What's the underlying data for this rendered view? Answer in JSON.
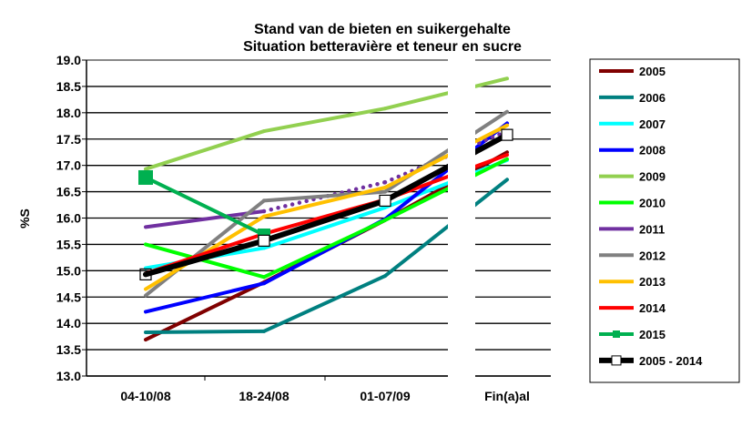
{
  "chart_data": {
    "type": "line",
    "title": "Stand van de bieten en suikergehalte",
    "subtitle": "Situation betteravière et teneur en sucre",
    "ylabel": "%S",
    "xlabel": "",
    "ylim": [
      13.0,
      19.0
    ],
    "yticks": [
      "13.0",
      "13.5",
      "14.0",
      "14.5",
      "15.0",
      "15.5",
      "16.0",
      "16.5",
      "17.0",
      "17.5",
      "18.0",
      "18.5",
      "19.0"
    ],
    "categories": [
      "04-10/08",
      "18-24/08",
      "01-07/09",
      "Fin(a)al"
    ],
    "axis_break": "between 01-07/09 and Fin(a)al",
    "grid": true,
    "legend": "right",
    "series": [
      {
        "name": "2005",
        "color": "#800000",
        "values": [
          13.69,
          14.78,
          15.96,
          17.25
        ]
      },
      {
        "name": "2006",
        "color": "#008080",
        "values": [
          13.83,
          13.85,
          14.9,
          16.73
        ]
      },
      {
        "name": "2007",
        "color": "#00FFFF",
        "values": [
          15.05,
          15.43,
          16.2,
          17.1
        ]
      },
      {
        "name": "2008",
        "color": "#0000FF",
        "values": [
          14.22,
          14.76,
          15.98,
          17.8
        ]
      },
      {
        "name": "2009",
        "color": "#92D050",
        "values": [
          16.93,
          17.65,
          18.08,
          18.65
        ]
      },
      {
        "name": "2010",
        "color": "#00FF00",
        "values": [
          15.5,
          14.88,
          15.96,
          17.12
        ]
      },
      {
        "name": "2011",
        "color": "#7030A0",
        "values": [
          15.83,
          16.13,
          16.68,
          17.65
        ],
        "dotted_after": 1
      },
      {
        "name": "2012",
        "color": "#808080",
        "values": [
          14.53,
          16.33,
          16.5,
          18.02
        ]
      },
      {
        "name": "2013",
        "color": "#FFC000",
        "values": [
          14.65,
          16.03,
          16.58,
          17.76
        ]
      },
      {
        "name": "2014",
        "color": "#FF0000",
        "values": [
          14.95,
          15.7,
          16.35,
          17.2
        ]
      },
      {
        "name": "2015",
        "color": "#00B050",
        "values": [
          16.77,
          15.68,
          null,
          null
        ],
        "marker": "square-filled"
      },
      {
        "name": "2005 - 2014",
        "color": "#000000",
        "values": [
          14.93,
          15.57,
          16.33,
          17.58
        ],
        "marker": "square-white",
        "bold": true
      }
    ]
  }
}
